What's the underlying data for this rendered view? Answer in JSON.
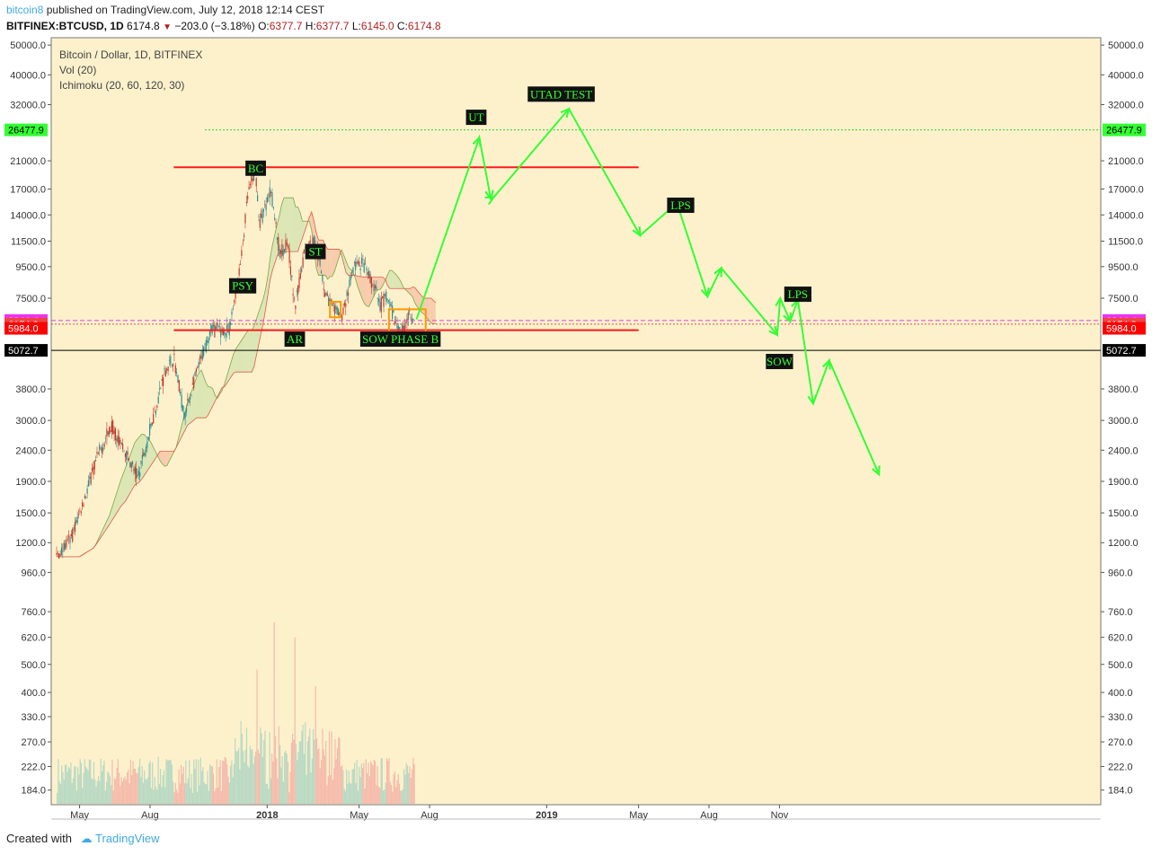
{
  "header": {
    "author": "bitcoin8",
    "published": "published on TradingView.com, July 12, 2018 12:14 CEST",
    "symbol": "BITFINEX:BTCUSD, 1D",
    "last": "6174.8",
    "change": "−203.0 (−3.18%)",
    "open_label": "O:",
    "open": "6377.7",
    "high_label": "H:",
    "high": "6377.7",
    "low_label": "L:",
    "low": "6145.0",
    "close_label": "C:",
    "close": "6174.8"
  },
  "legend": {
    "title": "Bitcoin / Dollar, 1D, BITFINEX",
    "vol": "Vol (20)",
    "ichimoku": "Ichimoku (20, 60, 120, 30)"
  },
  "footer": {
    "created_with": "Created with",
    "brand": "TradingView"
  },
  "colors": {
    "background": "#fdf1cc",
    "support_resistance": "#ff1a1a",
    "projection": "#33ff33",
    "cloud_bear": "#f6c6a6",
    "cloud_bull": "#d6e4b0",
    "box": "#ff9900",
    "candle_up": "#2e8b8b",
    "candle_down": "#c0392b"
  },
  "chart_data": {
    "type": "candlestick",
    "title": "Bitcoin / Dollar, 1D, BITFINEX",
    "y_scale": "log",
    "ylim": [
      165,
      52000
    ],
    "y_ticks": [
      "50000.0",
      "40000.0",
      "32000.0",
      "21000.0",
      "17000.0",
      "14000.0",
      "11500.0",
      "9500.0",
      "7500.0",
      "3800.0",
      "3000.0",
      "2400.0",
      "1900.0",
      "1500.0",
      "1200.0",
      "960.0",
      "760.0",
      "620.0",
      "500.0",
      "400.0",
      "330.0",
      "270.0",
      "222.0",
      "184.0"
    ],
    "x_ticks": [
      {
        "label": "May",
        "date": "2017-05-01",
        "bold": false
      },
      {
        "label": "Aug",
        "date": "2017-08-01",
        "bold": false
      },
      {
        "label": "2018",
        "date": "2018-01-01",
        "bold": true
      },
      {
        "label": "May",
        "date": "2018-05-01",
        "bold": false
      },
      {
        "label": "Aug",
        "date": "2018-08-01",
        "bold": false
      },
      {
        "label": "2019",
        "date": "2019-01-01",
        "bold": true
      },
      {
        "label": "May",
        "date": "2019-05-01",
        "bold": false
      },
      {
        "label": "Aug",
        "date": "2019-08-01",
        "bold": false
      },
      {
        "label": "Nov",
        "date": "2019-11-01",
        "bold": false
      }
    ],
    "price_lines": [
      {
        "value": 26477.9,
        "label": "26477.9",
        "style": "dotted",
        "color": "#33cc33",
        "bg": "#33ff33",
        "fg": "#000000"
      },
      {
        "value": 6344.4,
        "label": "6344.4",
        "style": "dashed",
        "color": "#e040e0",
        "bg": "#ee33ee",
        "fg": "#ffffff"
      },
      {
        "value": 6174.8,
        "label": "6174.8",
        "style": "dotted",
        "color": "#e05050",
        "bg": "#ee4444",
        "fg": "#ffffff"
      },
      {
        "value": 5984.0,
        "label": "5984.0",
        "style": "none",
        "color": "#ff0000",
        "bg": "#ff0000",
        "fg": "#ffffff"
      },
      {
        "value": 5072.7,
        "label": "5072.7",
        "style": "solid",
        "color": "#000000",
        "bg": "#000000",
        "fg": "#ffffff"
      }
    ],
    "horizontal_levels": [
      {
        "from": "2017-09-01",
        "to": "2019-05-01",
        "value": 20000
      },
      {
        "from": "2017-09-01",
        "to": "2019-05-01",
        "value": 5900
      }
    ],
    "annotations": [
      {
        "text": "BC",
        "date": "2017-12-17",
        "price": 19800
      },
      {
        "text": "PSY",
        "date": "2017-11-30",
        "price": 8200
      },
      {
        "text": "ST",
        "date": "2018-03-05",
        "price": 10600
      },
      {
        "text": "AR",
        "date": "2018-02-06",
        "price": 5500
      },
      {
        "text": "SOW PHASE B",
        "date": "2018-06-24",
        "price": 5500
      },
      {
        "text": "UT",
        "date": "2018-10-01",
        "price": 29000
      },
      {
        "text": "UTAD TEST",
        "date": "2019-01-20",
        "price": 34500
      },
      {
        "text": "LPS",
        "date": "2019-06-25",
        "price": 15000
      },
      {
        "text": "LPS",
        "date": "2019-11-25",
        "price": 7700
      },
      {
        "text": "SOW",
        "date": "2019-11-01",
        "price": 4650
      }
    ],
    "boxes": [
      {
        "from": "2018-03-24",
        "to": "2018-04-07",
        "low": 6500,
        "high": 7300
      },
      {
        "from": "2018-06-09",
        "to": "2018-07-27",
        "low": 5800,
        "high": 6900
      }
    ],
    "projection_path": [
      [
        "2018-07-15",
        6400
      ],
      [
        "2018-10-05",
        25000
      ],
      [
        "2018-10-20",
        15800
      ],
      [
        "2018-10-24",
        16000
      ],
      [
        "2019-01-30",
        31000
      ],
      [
        "2019-05-03",
        12000
      ],
      [
        "2019-06-20",
        15300
      ],
      [
        "2019-07-30",
        7600
      ],
      [
        "2019-08-17",
        9400
      ],
      [
        "2019-10-29",
        5700
      ],
      [
        "2019-11-02",
        7500
      ],
      [
        "2019-11-15",
        6300
      ],
      [
        "2019-11-25",
        7400
      ],
      [
        "2019-12-15",
        3400
      ],
      [
        "2020-01-05",
        4700
      ],
      [
        "2020-03-10",
        2000
      ]
    ],
    "price_path": [
      [
        "2017-04-01",
        1080
      ],
      [
        "2017-04-20",
        1240
      ],
      [
        "2017-05-10",
        1750
      ],
      [
        "2017-05-25",
        2300
      ],
      [
        "2017-06-12",
        2900
      ],
      [
        "2017-07-16",
        1950
      ],
      [
        "2017-08-01",
        2800
      ],
      [
        "2017-08-20",
        4300
      ],
      [
        "2017-09-01",
        4800
      ],
      [
        "2017-09-15",
        3100
      ],
      [
        "2017-10-01",
        4300
      ],
      [
        "2017-10-20",
        6000
      ],
      [
        "2017-11-12",
        5800
      ],
      [
        "2017-11-28",
        10000
      ],
      [
        "2017-12-07",
        16500
      ],
      [
        "2017-12-17",
        19500
      ],
      [
        "2017-12-22",
        13000
      ],
      [
        "2018-01-06",
        17000
      ],
      [
        "2018-01-17",
        10500
      ],
      [
        "2018-01-28",
        11500
      ],
      [
        "2018-02-06",
        6900
      ],
      [
        "2018-02-20",
        11200
      ],
      [
        "2018-03-05",
        11500
      ],
      [
        "2018-03-18",
        7800
      ],
      [
        "2018-03-30",
        6800
      ],
      [
        "2018-04-10",
        6700
      ],
      [
        "2018-04-24",
        9500
      ],
      [
        "2018-05-05",
        9700
      ],
      [
        "2018-05-20",
        8200
      ],
      [
        "2018-05-29",
        7100
      ],
      [
        "2018-06-05",
        7600
      ],
      [
        "2018-06-24",
        5800
      ],
      [
        "2018-07-05",
        6600
      ],
      [
        "2018-07-12",
        6200
      ]
    ],
    "volume": {
      "ylim": [
        165,
        750
      ],
      "range": [
        "2017-04-01",
        "2018-07-12"
      ],
      "notable": [
        [
          "2017-12-18",
          480
        ],
        [
          "2018-01-10",
          700
        ],
        [
          "2018-02-06",
          620
        ],
        [
          "2018-03-05",
          420
        ]
      ]
    }
  }
}
